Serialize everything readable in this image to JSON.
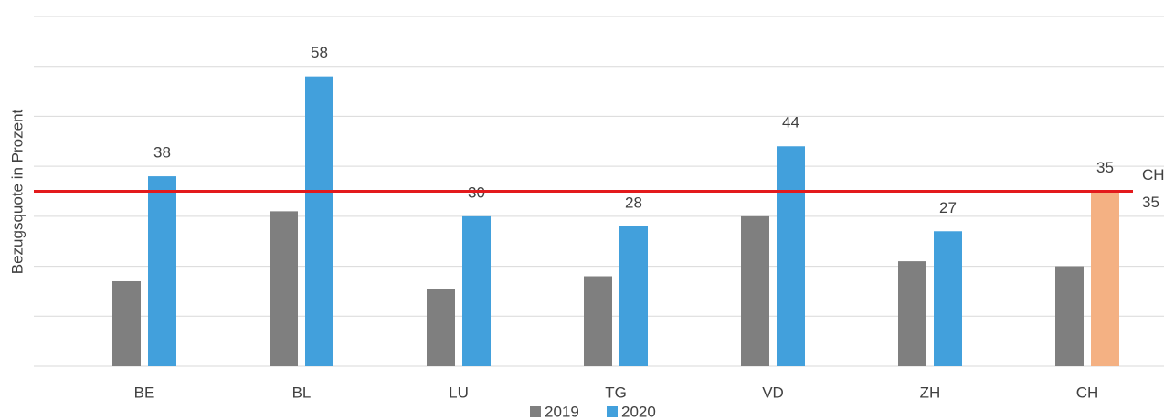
{
  "chart_data": {
    "type": "bar",
    "y_axis_label": "Bezugsquote in Prozent",
    "categories": [
      "BE",
      "BL",
      "LU",
      "TG",
      "VD",
      "ZH",
      "CH"
    ],
    "series": [
      {
        "name": "2019",
        "color": "#7f7f7f",
        "values": [
          17,
          31,
          15.5,
          18,
          30,
          21,
          20
        ]
      },
      {
        "name": "2020",
        "color": "#42a0dc",
        "values": [
          38,
          58,
          30,
          28,
          44,
          27,
          35
        ],
        "data_labels": true,
        "highlight": {
          "index": 6,
          "color": "#f4b183"
        }
      }
    ],
    "reference_line": {
      "label": "CH",
      "value": 35,
      "color": "#e31a1c"
    },
    "ylim": [
      0,
      70
    ],
    "yticks": [
      0,
      10,
      20,
      30,
      40,
      50,
      60,
      70
    ],
    "grid": true,
    "legend": "bottom"
  }
}
